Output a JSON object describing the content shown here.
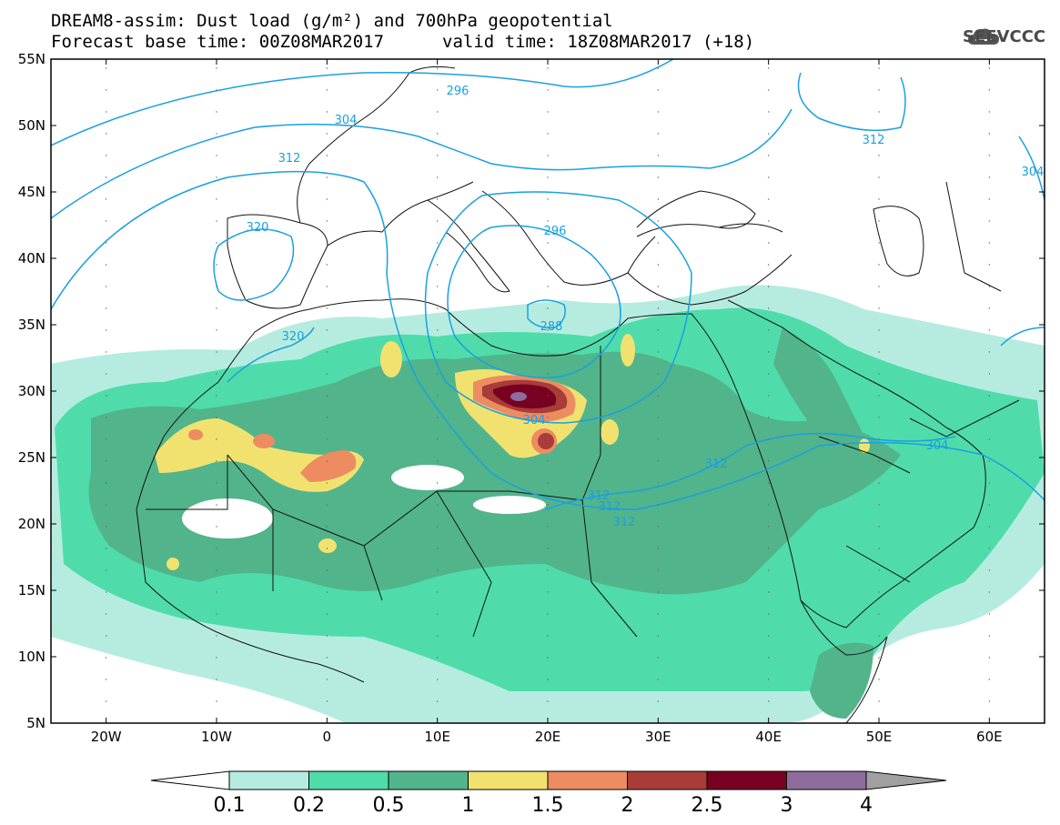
{
  "header": {
    "line1": "DREAM8-assim: Dust load (g/m²) and 700hPa geopotential",
    "line2_left": "Forecast base time: 00Z08MAR2017",
    "line2_right": "valid time: 18Z08MAR2017 (+18)",
    "logo_text": "SEEVCCC"
  },
  "map": {
    "lon_ticks": [
      "20W",
      "10W",
      "0",
      "10E",
      "20E",
      "30E",
      "40E",
      "50E",
      "60E"
    ],
    "lat_ticks": [
      "55N",
      "50N",
      "45N",
      "40N",
      "35N",
      "30N",
      "25N",
      "20N",
      "15N",
      "10N",
      "5N"
    ],
    "extent": {
      "lon": [
        -25,
        65
      ],
      "lat": [
        5,
        55
      ]
    },
    "colors": {
      "land_line": "#111111",
      "contour": "#1aa0e0"
    }
  },
  "contours": {
    "labels": [
      "296",
      "304",
      "312",
      "320",
      "296",
      "288",
      "304",
      "312",
      "312",
      "312",
      "312",
      "304",
      "304",
      "320",
      "312"
    ]
  },
  "dust_blobs": [
    {
      "color": "#b6ece0",
      "level": 0.1
    },
    {
      "color": "#4fdcaa",
      "level": 0.2
    },
    {
      "color": "#52b48a",
      "level": 0.5
    },
    {
      "color": "#f1e270",
      "level": 1
    },
    {
      "color": "#ec8c60",
      "level": 1.5
    },
    {
      "color": "#a83c38",
      "level": 2
    },
    {
      "color": "#780020",
      "level": 2.5
    },
    {
      "color": "#8e6c9c",
      "level": 3
    }
  ],
  "colorbar": {
    "labels": [
      "0.1",
      "0.2",
      "0.5",
      "1",
      "1.5",
      "2",
      "2.5",
      "3",
      "4"
    ],
    "colors": [
      "#b6ece0",
      "#4fdcaa",
      "#52b48a",
      "#f1e270",
      "#ec8c60",
      "#a83c38",
      "#780020",
      "#8e6c9c"
    ],
    "low_color": "#ffffff",
    "high_color": "#a0a0a0"
  }
}
